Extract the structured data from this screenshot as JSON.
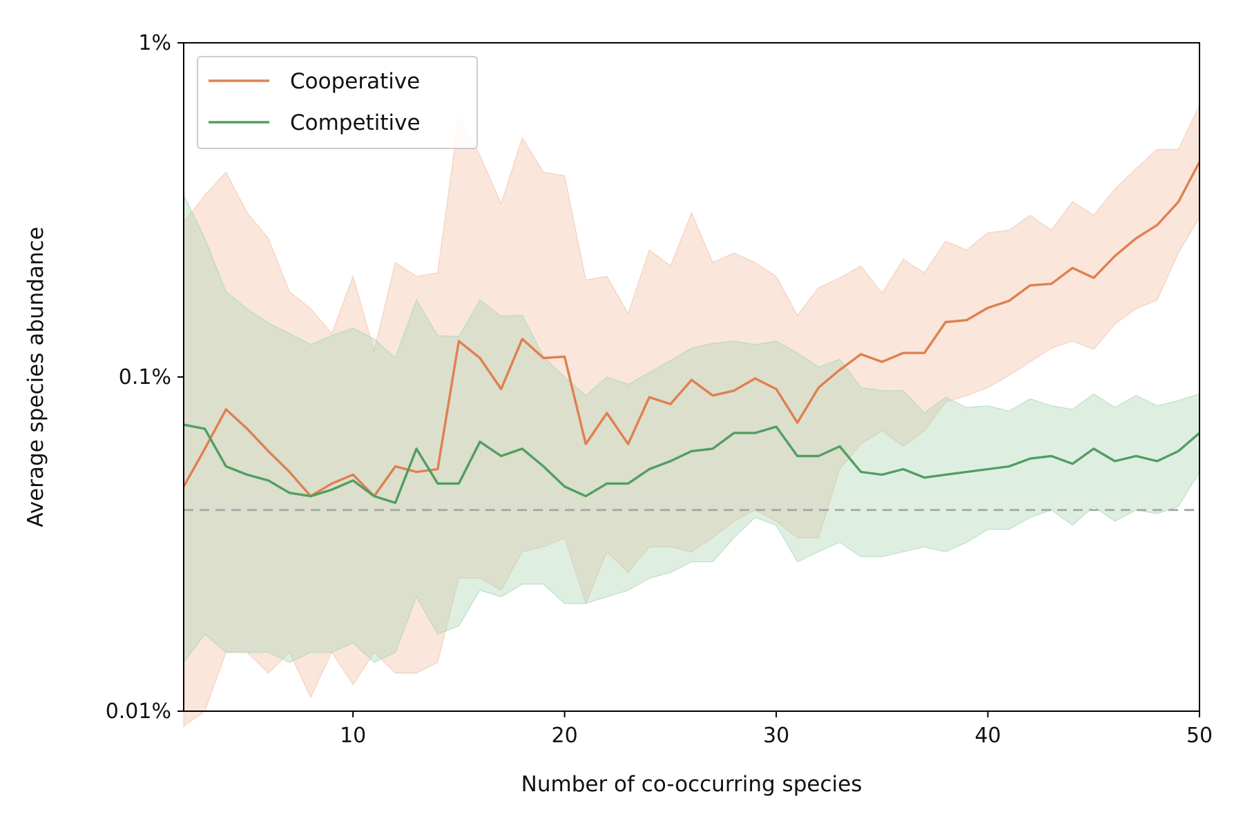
{
  "chart_data": {
    "type": "line",
    "xlabel": "Number of co-occurring species",
    "ylabel": "Average species abundance",
    "xlim": [
      2,
      50
    ],
    "ylim": [
      0.01,
      1
    ],
    "yscale": "log",
    "xticks": [
      10,
      20,
      30,
      40,
      50
    ],
    "xtick_labels": [
      "10",
      "20",
      "30",
      "40",
      "50"
    ],
    "yticks": [
      0.01,
      0.1,
      1
    ],
    "ytick_labels": [
      "0.01%",
      "0.1%",
      "1%"
    ],
    "grid": false,
    "legend_position": "upper-left",
    "reference_line": {
      "y": 0.04,
      "style": "dashed",
      "color": "#aaaaaa"
    },
    "x": [
      2,
      3,
      4,
      5,
      6,
      7,
      8,
      9,
      10,
      11,
      12,
      13,
      14,
      15,
      16,
      17,
      18,
      19,
      20,
      21,
      22,
      23,
      24,
      25,
      26,
      27,
      28,
      29,
      30,
      31,
      32,
      33,
      34,
      35,
      36,
      37,
      38,
      39,
      40,
      41,
      42,
      43,
      44,
      45,
      46,
      47,
      48,
      49,
      50
    ],
    "series": [
      {
        "name": "Cooperative",
        "color": "#e07f4f",
        "band_color": "#f2c3aa",
        "mean": [
          0.047,
          0.061,
          0.08,
          0.07,
          0.06,
          0.052,
          0.044,
          0.048,
          0.051,
          0.044,
          0.054,
          0.052,
          0.053,
          0.128,
          0.114,
          0.092,
          0.13,
          0.114,
          0.115,
          0.063,
          0.078,
          0.063,
          0.087,
          0.083,
          0.098,
          0.088,
          0.091,
          0.099,
          0.092,
          0.073,
          0.093,
          0.105,
          0.117,
          0.111,
          0.118,
          0.118,
          0.146,
          0.148,
          0.161,
          0.169,
          0.188,
          0.19,
          0.212,
          0.198,
          0.23,
          0.26,
          0.285,
          0.334,
          0.44
        ],
        "upper": [
          0.29,
          0.35,
          0.41,
          0.31,
          0.26,
          0.18,
          0.16,
          0.135,
          0.2,
          0.12,
          0.22,
          0.2,
          0.205,
          0.6,
          0.46,
          0.33,
          0.52,
          0.41,
          0.4,
          0.195,
          0.2,
          0.155,
          0.24,
          0.215,
          0.31,
          0.22,
          0.235,
          0.22,
          0.2,
          0.153,
          0.185,
          0.198,
          0.215,
          0.178,
          0.225,
          0.205,
          0.255,
          0.24,
          0.27,
          0.275,
          0.305,
          0.275,
          0.335,
          0.305,
          0.365,
          0.42,
          0.48,
          0.48,
          0.65
        ],
        "lower": [
          0.009,
          0.01,
          0.015,
          0.015,
          0.013,
          0.015,
          0.011,
          0.015,
          0.012,
          0.015,
          0.013,
          0.013,
          0.014,
          0.025,
          0.025,
          0.023,
          0.03,
          0.031,
          0.033,
          0.021,
          0.03,
          0.026,
          0.031,
          0.031,
          0.03,
          0.033,
          0.037,
          0.04,
          0.037,
          0.033,
          0.033,
          0.053,
          0.063,
          0.069,
          0.062,
          0.069,
          0.084,
          0.088,
          0.093,
          0.101,
          0.111,
          0.122,
          0.128,
          0.121,
          0.144,
          0.16,
          0.17,
          0.235,
          0.3
        ]
      },
      {
        "name": "Competitive",
        "color": "#519e61",
        "band_color": "#a8d6b3",
        "mean": [
          0.072,
          0.07,
          0.054,
          0.051,
          0.049,
          0.045,
          0.044,
          0.046,
          0.049,
          0.044,
          0.042,
          0.061,
          0.048,
          0.048,
          0.064,
          0.058,
          0.061,
          0.054,
          0.047,
          0.044,
          0.048,
          0.048,
          0.053,
          0.056,
          0.06,
          0.061,
          0.068,
          0.068,
          0.071,
          0.058,
          0.058,
          0.062,
          0.052,
          0.051,
          0.053,
          0.05,
          0.051,
          0.052,
          0.053,
          0.054,
          0.057,
          0.058,
          0.055,
          0.061,
          0.056,
          0.058,
          0.056,
          0.06,
          0.068
        ],
        "upper": [
          0.35,
          0.26,
          0.18,
          0.16,
          0.145,
          0.135,
          0.125,
          0.133,
          0.14,
          0.13,
          0.114,
          0.17,
          0.133,
          0.132,
          0.17,
          0.152,
          0.153,
          0.115,
          0.1,
          0.088,
          0.1,
          0.095,
          0.103,
          0.112,
          0.122,
          0.126,
          0.128,
          0.125,
          0.128,
          0.118,
          0.107,
          0.113,
          0.093,
          0.091,
          0.091,
          0.078,
          0.087,
          0.081,
          0.082,
          0.079,
          0.086,
          0.082,
          0.08,
          0.089,
          0.081,
          0.088,
          0.082,
          0.085,
          0.089
        ],
        "lower": [
          0.014,
          0.017,
          0.015,
          0.015,
          0.015,
          0.014,
          0.015,
          0.015,
          0.016,
          0.014,
          0.015,
          0.022,
          0.017,
          0.018,
          0.023,
          0.022,
          0.024,
          0.024,
          0.021,
          0.021,
          0.022,
          0.023,
          0.025,
          0.026,
          0.028,
          0.028,
          0.033,
          0.038,
          0.036,
          0.028,
          0.03,
          0.032,
          0.029,
          0.029,
          0.03,
          0.031,
          0.03,
          0.032,
          0.035,
          0.035,
          0.038,
          0.04,
          0.036,
          0.041,
          0.037,
          0.04,
          0.039,
          0.041,
          0.052
        ]
      }
    ]
  }
}
